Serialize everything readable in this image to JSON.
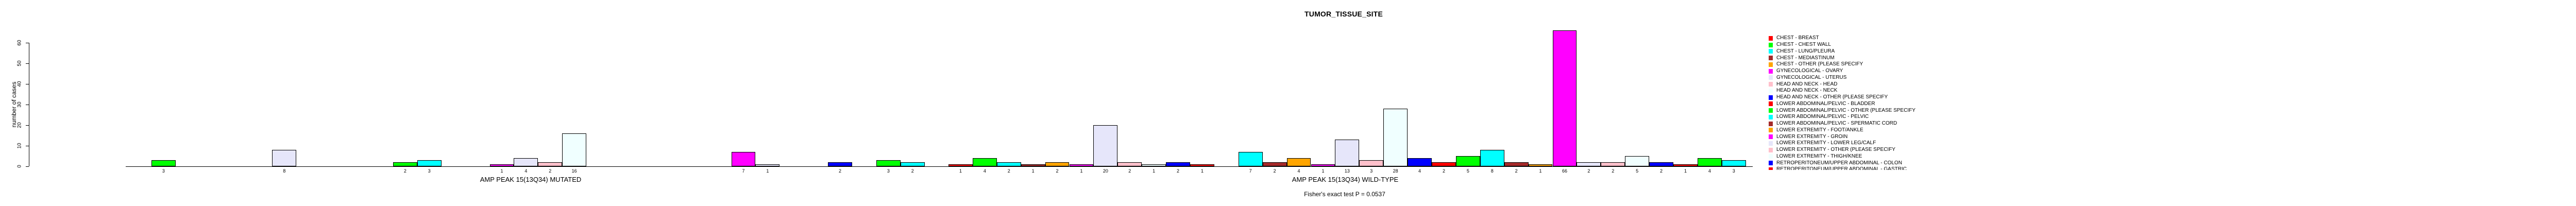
{
  "chart_data": {
    "type": "bar",
    "title": "TUMOR_TISSUE_SITE",
    "ylabel": "number of cases",
    "ylim": [
      0,
      60
    ],
    "yticks": [
      0,
      10,
      20,
      30,
      40,
      50,
      60
    ],
    "grid": false,
    "footnote": "Fisher's exact test P = 0.0537",
    "legend_position": "right-inside",
    "legend_clipped_at_bottom": true,
    "color_cycle": [
      "#FF0000",
      "#00FF00",
      "#00FFFF",
      "#A52A2A",
      "#FFA500",
      "#FF00FF",
      "#E6E6FA",
      "#FFC0CB",
      "#F0FFFF",
      "#0000FF"
    ],
    "n_category_slots_per_group": 33,
    "legend_entries": [
      {
        "label": "CHEST - BREAST",
        "clipped": false
      },
      {
        "label": "CHEST - CHEST WALL",
        "clipped": false
      },
      {
        "label": "CHEST - LUNG/PLEURA",
        "clipped": false
      },
      {
        "label": "CHEST - MEDIASTINUM",
        "clipped": false
      },
      {
        "label": "CHEST - OTHER (PLEASE SPECIFY",
        "clipped": false
      },
      {
        "label": "GYNECOLOGICAL - OVARY",
        "clipped": false
      },
      {
        "label": "GYNECOLOGICAL - UTERUS",
        "clipped": false
      },
      {
        "label": "HEAD AND NECK - HEAD",
        "clipped": false
      },
      {
        "label": "HEAD AND NECK - NECK",
        "clipped": false
      },
      {
        "label": "HEAD AND NECK - OTHER (PLEASE SPECIFY",
        "clipped": false
      },
      {
        "label": "LOWER ABDOMINAL/PELVIC - BLADDER",
        "clipped": false
      },
      {
        "label": "LOWER ABDOMINAL/PELVIC - OTHER (PLEASE SPECIFY",
        "clipped": false
      },
      {
        "label": "LOWER ABDOMINAL/PELVIC - PELVIC",
        "clipped": false
      },
      {
        "label": "LOWER ABDOMINAL/PELVIC - SPERMATIC CORD",
        "clipped": false
      },
      {
        "label": "LOWER EXTREMITY - FOOT/ANKLE",
        "clipped": false
      },
      {
        "label": "LOWER EXTREMITY - GROIN",
        "clipped": false
      },
      {
        "label": "LOWER EXTREMITY - LOWER LEG/CALF",
        "clipped": false
      },
      {
        "label": "LOWER EXTREMITY - OTHER (PLEASE SPECIFY",
        "clipped": false
      },
      {
        "label": "LOWER EXTREMITY - THIGH/KNEE",
        "clipped": false
      },
      {
        "label": "RETROPERITONEUM/UPPER ABDOMINAL - COLON",
        "clipped": false
      },
      {
        "label": "RETROPERITONEUM/UPPER ABDOMINAL - GASTRIC",
        "clipped": true
      }
    ],
    "groups": [
      {
        "label": "AMP PEAK 15(13Q34) MUTATED",
        "bars": [
          {
            "slot": 1,
            "value": 3
          },
          {
            "slot": 6,
            "value": 8
          },
          {
            "slot": 11,
            "value": 2
          },
          {
            "slot": 12,
            "value": 3
          },
          {
            "slot": 15,
            "value": 1
          },
          {
            "slot": 16,
            "value": 4
          },
          {
            "slot": 17,
            "value": 2
          },
          {
            "slot": 18,
            "value": 16
          },
          {
            "slot": 25,
            "value": 7
          },
          {
            "slot": 26,
            "value": 1
          },
          {
            "slot": 29,
            "value": 2
          },
          {
            "slot": 31,
            "value": 3
          },
          {
            "slot": 32,
            "value": 2
          }
        ]
      },
      {
        "label": "AMP PEAK 15(13Q34) WILD-TYPE",
        "bars": [
          {
            "slot": 0,
            "value": 1
          },
          {
            "slot": 1,
            "value": 4
          },
          {
            "slot": 2,
            "value": 2
          },
          {
            "slot": 3,
            "value": 1
          },
          {
            "slot": 4,
            "value": 2
          },
          {
            "slot": 5,
            "value": 1
          },
          {
            "slot": 6,
            "value": 20
          },
          {
            "slot": 7,
            "value": 2
          },
          {
            "slot": 8,
            "value": 1
          },
          {
            "slot": 9,
            "value": 2
          },
          {
            "slot": 10,
            "value": 1
          },
          {
            "slot": 12,
            "value": 7
          },
          {
            "slot": 13,
            "value": 2
          },
          {
            "slot": 14,
            "value": 4
          },
          {
            "slot": 15,
            "value": 1
          },
          {
            "slot": 16,
            "value": 13
          },
          {
            "slot": 17,
            "value": 3
          },
          {
            "slot": 18,
            "value": 28
          },
          {
            "slot": 19,
            "value": 4
          },
          {
            "slot": 20,
            "value": 2
          },
          {
            "slot": 21,
            "value": 5
          },
          {
            "slot": 22,
            "value": 8
          },
          {
            "slot": 23,
            "value": 2
          },
          {
            "slot": 24,
            "value": 1
          },
          {
            "slot": 25,
            "value": 66
          },
          {
            "slot": 26,
            "value": 2
          },
          {
            "slot": 27,
            "value": 2
          },
          {
            "slot": 28,
            "value": 5
          },
          {
            "slot": 29,
            "value": 2
          },
          {
            "slot": 30,
            "value": 1
          },
          {
            "slot": 31,
            "value": 4
          },
          {
            "slot": 32,
            "value": 3
          }
        ]
      }
    ]
  }
}
